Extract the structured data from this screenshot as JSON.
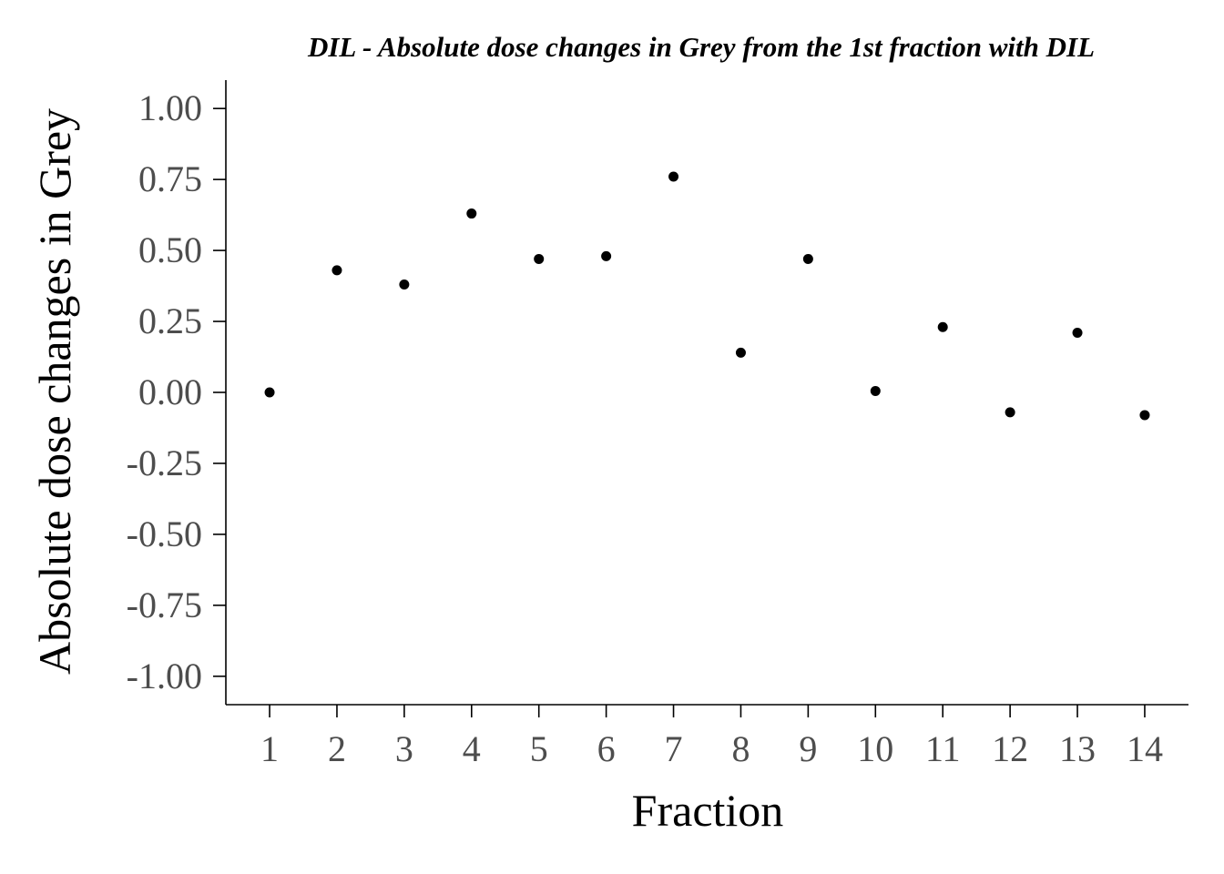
{
  "chart_data": {
    "type": "scatter",
    "title": "DIL - Absolute dose changes in Grey from the 1st fraction with DIL",
    "xlabel": "Fraction",
    "ylabel": "Absolute dose changes in Grey",
    "x": [
      1,
      2,
      3,
      4,
      5,
      6,
      7,
      8,
      9,
      10,
      11,
      12,
      13,
      14
    ],
    "y": [
      0.0,
      0.43,
      0.38,
      0.63,
      0.47,
      0.48,
      0.76,
      0.14,
      0.47,
      0.005,
      0.23,
      -0.07,
      0.21,
      -0.08
    ],
    "xlim": [
      0.35,
      14.65
    ],
    "ylim": [
      -1.1,
      1.1
    ],
    "x_ticks": [
      "1",
      "2",
      "3",
      "4",
      "5",
      "6",
      "7",
      "8",
      "9",
      "10",
      "11",
      "12",
      "13",
      "14"
    ],
    "y_ticks": [
      1.0,
      0.75,
      0.5,
      0.25,
      0.0,
      -0.25,
      -0.5,
      -0.75,
      -1.0
    ],
    "y_tick_labels": [
      "1.00",
      "0.75",
      "0.50",
      "0.25",
      "0.00",
      "-0.25",
      "-0.50",
      "-0.75",
      "-1.00"
    ],
    "grid": false,
    "legend": "none",
    "point_color": "#000000"
  }
}
